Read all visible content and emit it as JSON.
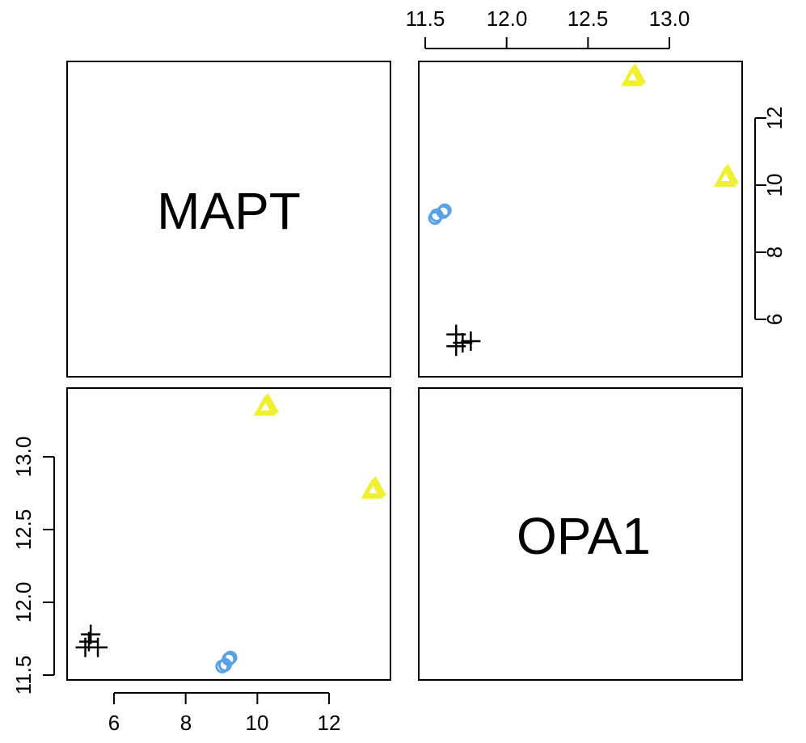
{
  "chart_data": {
    "type": "scatter",
    "layout": "pairs",
    "variables": [
      "MAPT",
      "OPA1"
    ],
    "ranges": {
      "MAPT": [
        5.0,
        13.4
      ],
      "OPA1": [
        11.5,
        13.5
      ]
    },
    "ticks": {
      "MAPT": [
        "6",
        "8",
        "10",
        "12"
      ],
      "OPA1": [
        "11.5",
        "12.0",
        "12.5",
        "13.0"
      ]
    },
    "grid": false,
    "legend": "none",
    "groups": [
      {
        "marker": "plus",
        "color": "#000000",
        "points": [
          {
            "MAPT": 5.2,
            "OPA1": 11.69
          },
          {
            "MAPT": 5.3,
            "OPA1": 11.73
          },
          {
            "MAPT": 5.35,
            "OPA1": 11.78
          },
          {
            "MAPT": 5.55,
            "OPA1": 11.69
          }
        ]
      },
      {
        "marker": "circle",
        "color": "#5aa0e6",
        "points": [
          {
            "MAPT": 9.02,
            "OPA1": 11.56
          },
          {
            "MAPT": 9.1,
            "OPA1": 11.57
          },
          {
            "MAPT": 9.2,
            "OPA1": 11.61
          },
          {
            "MAPT": 9.25,
            "OPA1": 11.62
          }
        ]
      },
      {
        "marker": "triangle",
        "color": "#f0f030",
        "points": [
          {
            "MAPT": 10.2,
            "OPA1": 13.34
          },
          {
            "MAPT": 10.25,
            "OPA1": 13.35
          },
          {
            "MAPT": 10.3,
            "OPA1": 13.36
          },
          {
            "MAPT": 13.2,
            "OPA1": 12.77
          },
          {
            "MAPT": 13.25,
            "OPA1": 12.78
          },
          {
            "MAPT": 13.3,
            "OPA1": 12.79
          }
        ]
      }
    ]
  }
}
